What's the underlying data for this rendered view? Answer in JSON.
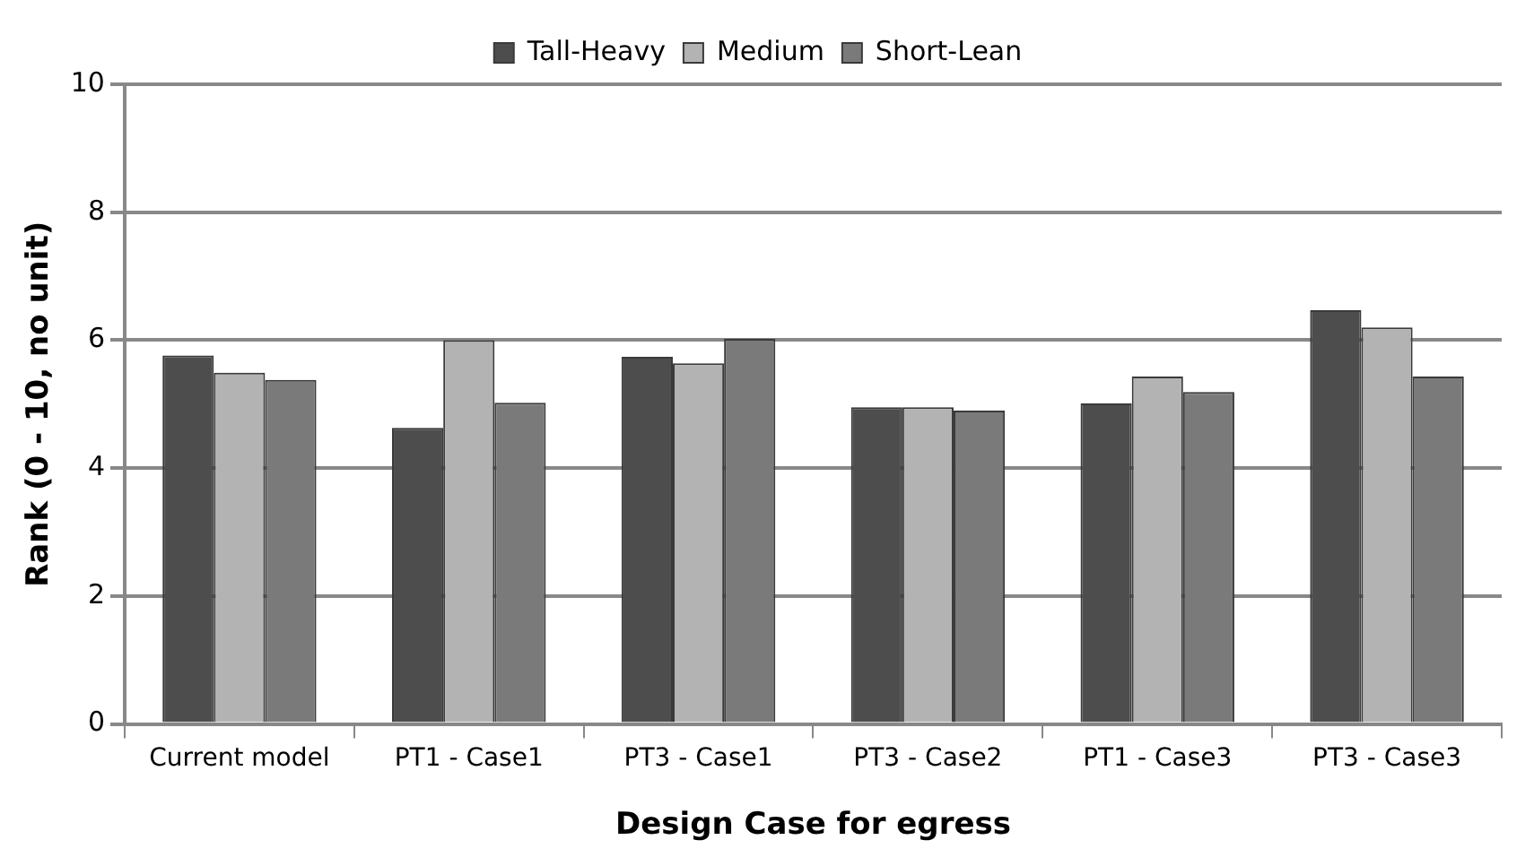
{
  "chart_data": {
    "type": "bar",
    "xlabel": "Design Case for egress",
    "ylabel": "Rank (0 - 10, no unit)",
    "categories": [
      "Current model",
      "PT1 - Case1",
      "PT3 - Case1",
      "PT3 - Case2",
      "PT1 - Case3",
      "PT3 - Case3"
    ],
    "series": [
      {
        "name": "Tall-Heavy",
        "color": "#4d4d4d",
        "values": [
          5.76,
          4.63,
          5.74,
          4.95,
          5.01,
          6.47
        ]
      },
      {
        "name": "Medium",
        "color": "#b3b3b3",
        "values": [
          5.49,
          6.0,
          5.64,
          4.95,
          5.43,
          6.2
        ]
      },
      {
        "name": "Short-Lean",
        "color": "#7a7a7a",
        "values": [
          5.38,
          5.02,
          6.02,
          4.9,
          5.19,
          5.43
        ]
      }
    ],
    "ylim": [
      0,
      10
    ],
    "yticks": [
      0,
      2,
      4,
      6,
      8,
      10
    ],
    "grid": "y",
    "legend": "top"
  }
}
